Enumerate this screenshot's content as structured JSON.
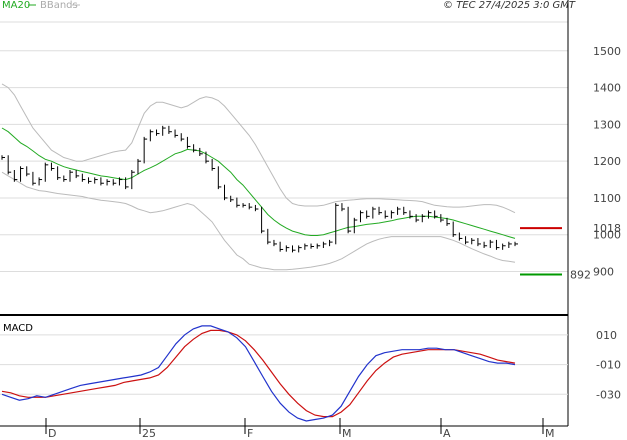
{
  "header": {
    "legend_ma": "MA20",
    "legend_bbands": "BBands",
    "copyright": "© TEC 27/4/2025 3:0 GMT"
  },
  "macd_panel": {
    "title": "MACD"
  },
  "colors": {
    "ma": "#22aa22",
    "bbands": "#bbbbbb",
    "price": "#000000",
    "resistance": "#cc0000",
    "support": "#009900",
    "macd_line": "#2233cc",
    "signal_line": "#cc1111",
    "grid": "#dddddd",
    "frame": "#000000"
  },
  "chart_data": [
    {
      "type": "line",
      "panel": "price",
      "x_tick_labels": [
        "D",
        "25",
        "F",
        "M",
        "A",
        "M"
      ],
      "y_ticks": [
        900,
        1000,
        1100,
        1200,
        1300,
        1400,
        1500
      ],
      "ylim": [
        790,
        1600
      ],
      "grid": true,
      "price_close": [
        1210,
        1170,
        1150,
        1180,
        1165,
        1140,
        1150,
        1190,
        1180,
        1155,
        1150,
        1170,
        1160,
        1150,
        1145,
        1150,
        1140,
        1145,
        1140,
        1150,
        1130,
        1170,
        1200,
        1260,
        1280,
        1275,
        1290,
        1280,
        1270,
        1260,
        1240,
        1230,
        1220,
        1200,
        1180,
        1130,
        1100,
        1095,
        1080,
        1080,
        1075,
        1070,
        1010,
        980,
        975,
        960,
        965,
        958,
        965,
        970,
        968,
        970,
        975,
        980,
        1080,
        1070,
        1010,
        1040,
        1060,
        1050,
        1070,
        1060,
        1050,
        1060,
        1070,
        1060,
        1050,
        1040,
        1050,
        1060,
        1050,
        1040,
        1030,
        1000,
        990,
        980,
        985,
        975,
        970,
        980,
        965,
        970,
        975,
        975
      ],
      "ma20": [
        1290,
        1280,
        1265,
        1250,
        1240,
        1228,
        1215,
        1205,
        1200,
        1192,
        1185,
        1180,
        1176,
        1172,
        1168,
        1164,
        1160,
        1158,
        1155,
        1152,
        1150,
        1155,
        1165,
        1175,
        1182,
        1190,
        1200,
        1210,
        1220,
        1225,
        1232,
        1230,
        1228,
        1220,
        1210,
        1200,
        1185,
        1170,
        1150,
        1135,
        1115,
        1095,
        1075,
        1055,
        1040,
        1028,
        1018,
        1010,
        1005,
        1000,
        998,
        998,
        1000,
        1005,
        1010,
        1015,
        1020,
        1022,
        1025,
        1028,
        1030,
        1032,
        1035,
        1038,
        1042,
        1045,
        1048,
        1050,
        1050,
        1050,
        1048,
        1046,
        1044,
        1040,
        1035,
        1030,
        1025,
        1020,
        1015,
        1010,
        1005,
        1000,
        995,
        990
      ],
      "bb_upper": [
        1410,
        1400,
        1380,
        1350,
        1320,
        1290,
        1270,
        1250,
        1230,
        1220,
        1210,
        1205,
        1200,
        1200,
        1205,
        1210,
        1215,
        1220,
        1225,
        1228,
        1230,
        1250,
        1290,
        1330,
        1350,
        1360,
        1360,
        1355,
        1350,
        1345,
        1350,
        1360,
        1370,
        1375,
        1372,
        1365,
        1350,
        1330,
        1310,
        1290,
        1270,
        1245,
        1215,
        1185,
        1155,
        1125,
        1100,
        1085,
        1080,
        1078,
        1078,
        1078,
        1080,
        1085,
        1090,
        1092,
        1094,
        1095,
        1097,
        1098,
        1098,
        1098,
        1097,
        1096,
        1095,
        1094,
        1093,
        1092,
        1090,
        1085,
        1080,
        1078,
        1076,
        1075,
        1075,
        1076,
        1078,
        1080,
        1082,
        1082,
        1080,
        1075,
        1068,
        1060
      ],
      "bb_lower": [
        1170,
        1160,
        1150,
        1140,
        1130,
        1125,
        1120,
        1118,
        1115,
        1112,
        1110,
        1108,
        1106,
        1104,
        1100,
        1097,
        1094,
        1092,
        1090,
        1088,
        1085,
        1078,
        1070,
        1065,
        1060,
        1062,
        1065,
        1070,
        1075,
        1080,
        1085,
        1080,
        1065,
        1050,
        1035,
        1010,
        985,
        965,
        945,
        935,
        920,
        915,
        910,
        908,
        905,
        905,
        905,
        906,
        908,
        910,
        912,
        915,
        918,
        922,
        928,
        935,
        945,
        955,
        965,
        975,
        982,
        988,
        992,
        995,
        995,
        995,
        995,
        995,
        995,
        995,
        995,
        995,
        990,
        985,
        978,
        970,
        962,
        955,
        948,
        942,
        935,
        930,
        928,
        925
      ],
      "horizontal_levels": [
        {
          "value": 1018,
          "label": "1018",
          "kind": "resistance"
        },
        {
          "value": 892,
          "label": "892",
          "kind": "support"
        }
      ]
    },
    {
      "type": "line",
      "panel": "macd",
      "y_ticks": [
        10,
        -10,
        -30
      ],
      "y_tick_labels": [
        "010",
        "-010",
        "-030"
      ],
      "ylim": [
        -50,
        20
      ],
      "series": [
        {
          "role": "macd",
          "values": [
            -30,
            -32,
            -34,
            -33,
            -31,
            -32,
            -30,
            -28,
            -26,
            -24,
            -23,
            -22,
            -21,
            -20,
            -19,
            -18,
            -17,
            -15,
            -12,
            -4,
            4,
            10,
            14,
            16,
            16,
            14,
            12,
            8,
            2,
            -8,
            -18,
            -28,
            -36,
            -42,
            -46,
            -48,
            -47,
            -46,
            -44,
            -38,
            -28,
            -18,
            -10,
            -4,
            -2,
            -1,
            0,
            0,
            0,
            1,
            1,
            0,
            0,
            -2,
            -4,
            -6,
            -8,
            -9,
            -9,
            -10
          ]
        },
        {
          "role": "signal",
          "values": [
            -28,
            -29,
            -31,
            -32,
            -32,
            -32,
            -31,
            -30,
            -29,
            -28,
            -27,
            -26,
            -25,
            -24,
            -22,
            -21,
            -20,
            -19,
            -17,
            -12,
            -5,
            2,
            7,
            11,
            13,
            13,
            12,
            10,
            6,
            0,
            -7,
            -15,
            -23,
            -30,
            -36,
            -41,
            -44,
            -45,
            -45,
            -42,
            -37,
            -29,
            -21,
            -14,
            -9,
            -5,
            -3,
            -2,
            -1,
            0,
            0,
            0,
            0,
            -1,
            -2,
            -3,
            -5,
            -7,
            -8,
            -9
          ]
        }
      ]
    }
  ]
}
